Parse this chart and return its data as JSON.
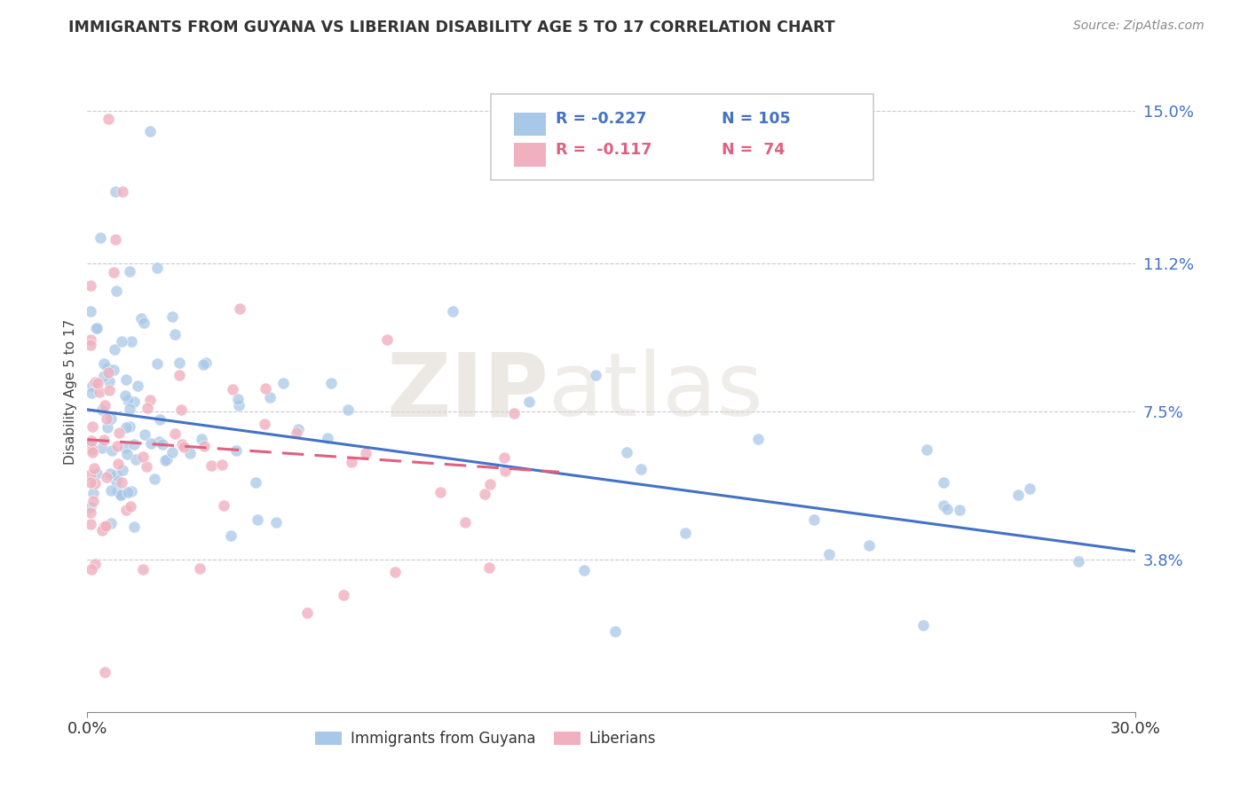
{
  "title": "IMMIGRANTS FROM GUYANA VS LIBERIAN DISABILITY AGE 5 TO 17 CORRELATION CHART",
  "source": "Source: ZipAtlas.com",
  "ylabel": "Disability Age 5 to 17",
  "xlim": [
    0.0,
    0.3
  ],
  "ylim": [
    0.0,
    0.16
  ],
  "x_tick_labels": [
    "0.0%",
    "30.0%"
  ],
  "y_tick_labels_right": [
    "3.8%",
    "7.5%",
    "11.2%",
    "15.0%"
  ],
  "y_tick_values_right": [
    0.038,
    0.075,
    0.112,
    0.15
  ],
  "guyana_color": "#a8c8e8",
  "liberian_color": "#f0b0c0",
  "guyana_line_color": "#4472c4",
  "liberian_line_color": "#e06080",
  "guyana_R": "-0.227",
  "guyana_N": "105",
  "liberian_R": "-0.117",
  "liberian_N": "74",
  "watermark_zip": "ZIP",
  "watermark_atlas": "atlas",
  "legend_box_color": "#cccccc",
  "grid_color": "#c8c8d8",
  "axis_color": "#888888",
  "title_color": "#333333",
  "source_color": "#888888",
  "ylabel_color": "#444444",
  "right_tick_color": "#4472c4",
  "bottom_legend_label1": "Immigrants from Guyana",
  "bottom_legend_label2": "Liberians",
  "guyana_line_intercept": 0.0755,
  "guyana_line_slope": -0.118,
  "liberian_line_intercept": 0.068,
  "liberian_line_slope": -0.06,
  "liberian_line_xmax": 0.135
}
